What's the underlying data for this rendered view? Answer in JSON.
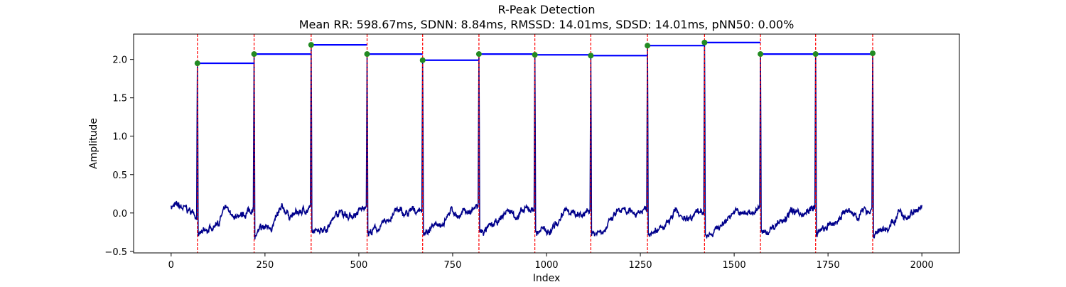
{
  "chart_data": {
    "type": "line",
    "title": "R-Peak Detection",
    "subtitle": "Mean RR: 598.67ms, SDNN: 8.84ms, RMSSD: 14.01ms, SDSD: 14.01ms, pNN50: 0.00%",
    "xlabel": "Index",
    "ylabel": "Amplitude",
    "xlim": [
      -100,
      2100
    ],
    "ylim": [
      -0.52,
      2.33
    ],
    "xticks": [
      0,
      250,
      500,
      750,
      1000,
      1250,
      1500,
      1750,
      2000
    ],
    "yticks": [
      -0.5,
      0.0,
      0.5,
      1.0,
      1.5,
      2.0
    ],
    "grid": false,
    "legend": "none",
    "colors": {
      "signal": "#00008b",
      "peak_marker": "#228b22",
      "peak_line": "#ff0000",
      "rr_segment": "#0000ff"
    },
    "r_peaks": [
      {
        "x": 70,
        "y": 1.95
      },
      {
        "x": 221,
        "y": 2.07
      },
      {
        "x": 373,
        "y": 2.19
      },
      {
        "x": 522,
        "y": 2.07
      },
      {
        "x": 670,
        "y": 1.99
      },
      {
        "x": 820,
        "y": 2.07
      },
      {
        "x": 969,
        "y": 2.06
      },
      {
        "x": 1118,
        "y": 2.05
      },
      {
        "x": 1269,
        "y": 2.18
      },
      {
        "x": 1421,
        "y": 2.22
      },
      {
        "x": 1570,
        "y": 2.07
      },
      {
        "x": 1717,
        "y": 2.07
      },
      {
        "x": 1869,
        "y": 2.08
      }
    ],
    "signal": {
      "x_start": 0,
      "x_end": 2000,
      "baseline_after_peak": -0.27,
      "baseline_before_peak": 0.07,
      "noise_amplitude": 0.05
    }
  }
}
